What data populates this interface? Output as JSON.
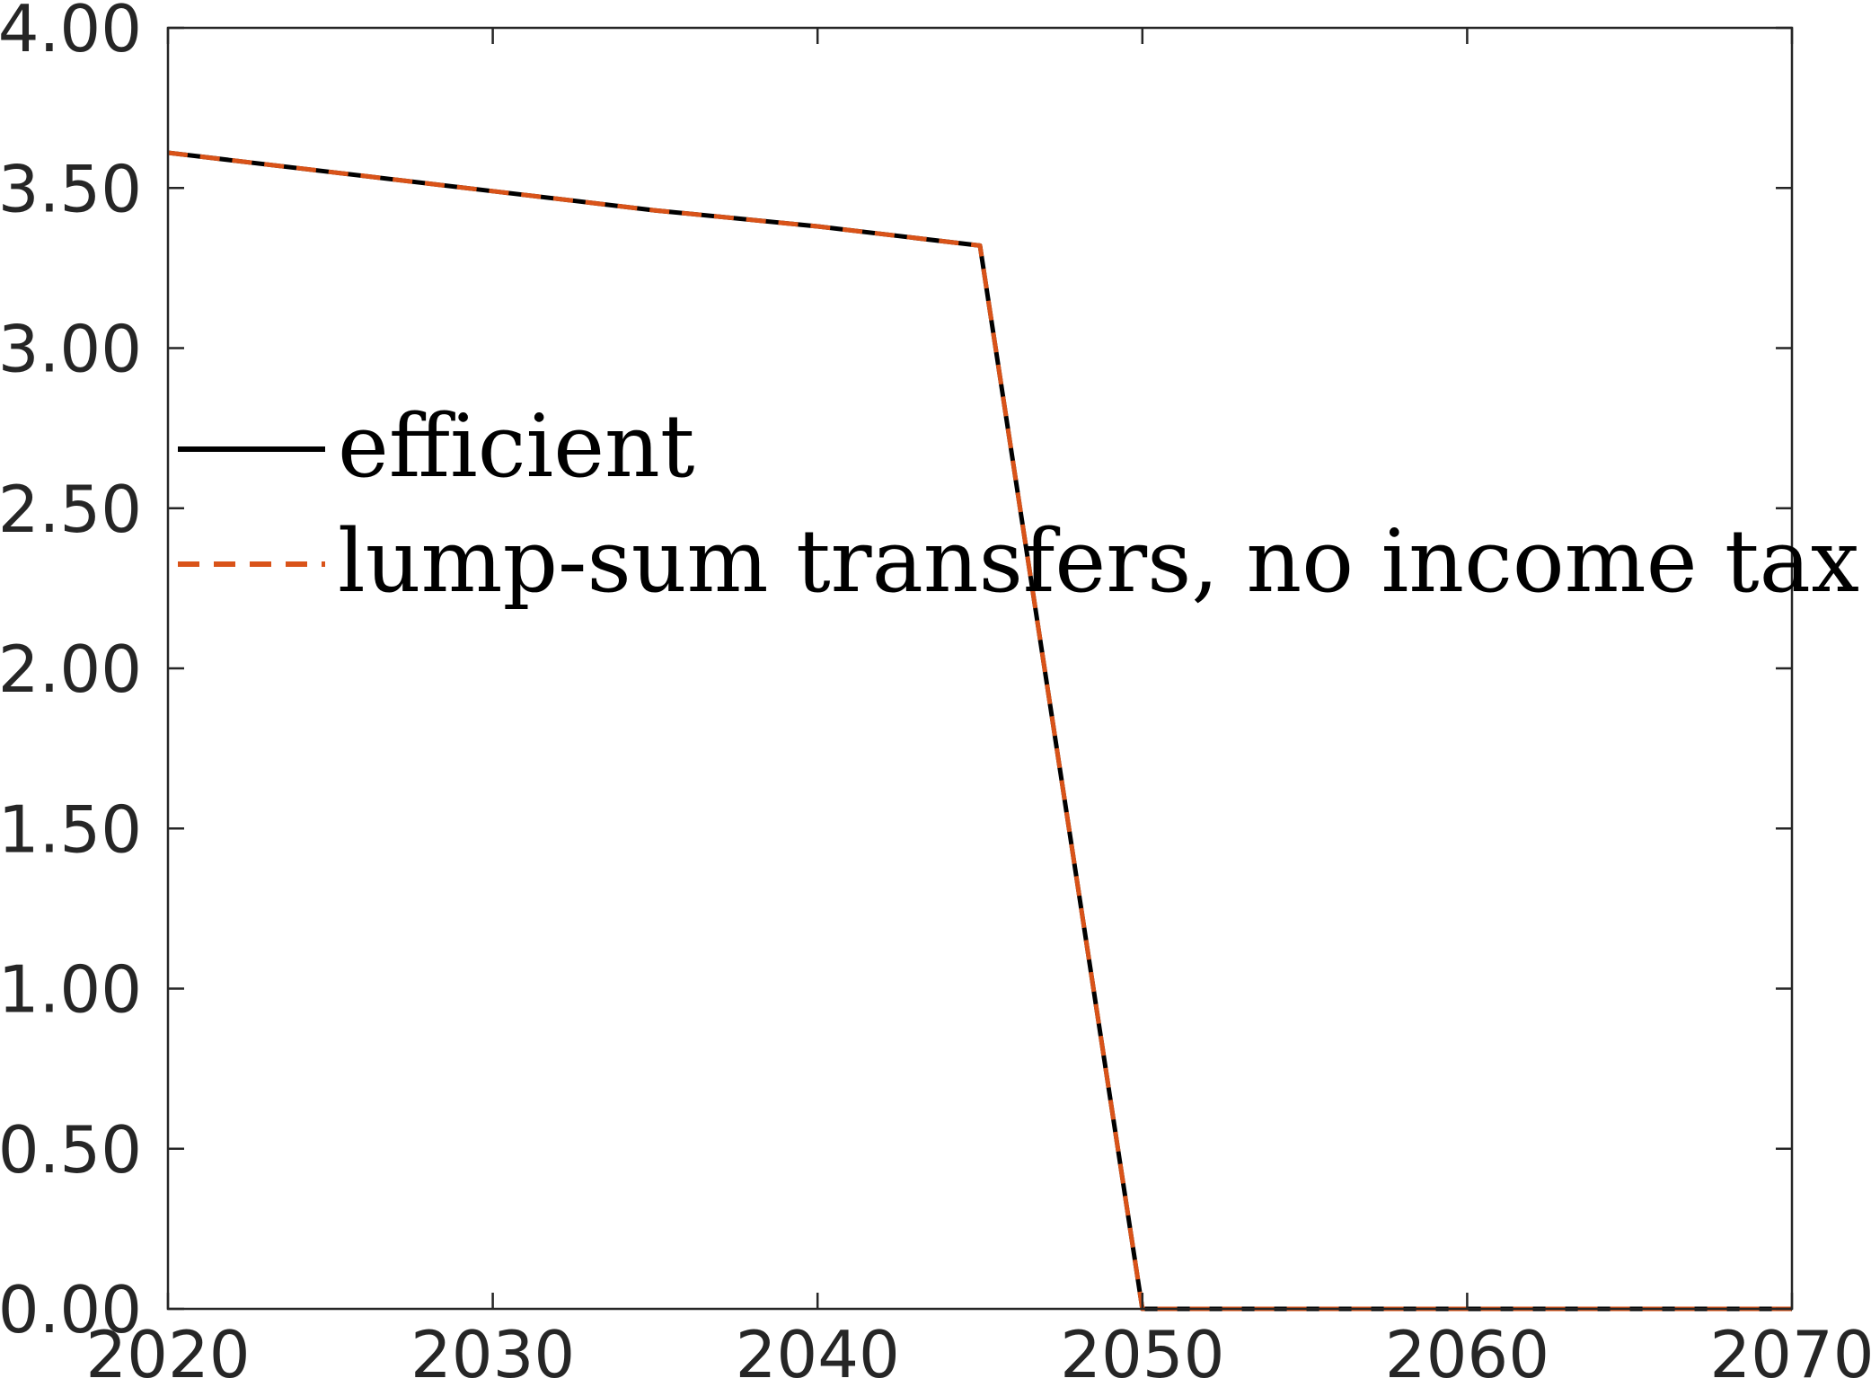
{
  "chart_data": {
    "type": "line",
    "title": "",
    "xlabel": "",
    "ylabel": "",
    "xlim": [
      2020,
      2070
    ],
    "ylim": [
      0,
      4
    ],
    "x_ticks": [
      "2020",
      "2030",
      "2040",
      "2050",
      "2060",
      "2070"
    ],
    "y_ticks": [
      "0.00",
      "0.50",
      "1.00",
      "1.50",
      "2.00",
      "2.50",
      "3.00",
      "3.50",
      "4.00"
    ],
    "grid": false,
    "legend_position": "left, upper-middle",
    "series": [
      {
        "name": "efficient",
        "color": "#000000",
        "style": "solid",
        "x": [
          2020,
          2025,
          2030,
          2035,
          2040,
          2045,
          2050,
          2055,
          2060,
          2065,
          2070
        ],
        "y": [
          3.61,
          3.55,
          3.49,
          3.43,
          3.38,
          3.32,
          0.0,
          0.0,
          0.0,
          0.0,
          0.0
        ]
      },
      {
        "name": "lump-sum transfers, no income tax",
        "color": "#D95319",
        "style": "dashed",
        "x": [
          2020,
          2025,
          2030,
          2035,
          2040,
          2045,
          2050,
          2055,
          2060,
          2065,
          2070
        ],
        "y": [
          3.61,
          3.55,
          3.49,
          3.43,
          3.38,
          3.32,
          0.0,
          0.0,
          0.0,
          0.0,
          0.0
        ]
      }
    ]
  }
}
